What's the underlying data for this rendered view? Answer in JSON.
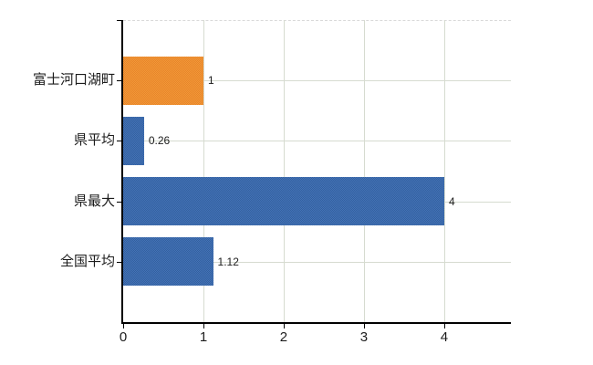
{
  "chart_data": {
    "type": "bar",
    "orientation": "horizontal",
    "categories": [
      "富士河口湖町",
      "県平均",
      "県最大",
      "全国平均"
    ],
    "values": [
      1,
      0.26,
      4,
      1.12
    ],
    "value_labels": [
      "1",
      "0.26",
      "4",
      "1.12"
    ],
    "bar_colors": [
      {
        "name": "orange",
        "c1": "#f19a38",
        "c2": "#e8832a",
        "avg": "#ed8f31"
      },
      {
        "name": "blue",
        "c1": "#4472b8",
        "c2": "#33619e",
        "avg": "#3c6aab"
      },
      {
        "name": "blue",
        "c1": "#4472b8",
        "c2": "#33619e",
        "avg": "#3c6aab"
      },
      {
        "name": "blue",
        "c1": "#4472b8",
        "c2": "#33619e",
        "avg": "#3c6aab"
      }
    ],
    "x_ticks": [
      "0",
      "1",
      "2",
      "3",
      "4"
    ],
    "x_tick_values": [
      0,
      1,
      2,
      3,
      4
    ],
    "xlim": [
      0,
      4.83
    ],
    "grid": true,
    "legend": false,
    "colors": {
      "axis": "#000000",
      "grid": "#d6dbd0",
      "border": "#d9d9d9",
      "text": "#1c1c1c",
      "background": "#ffffff"
    }
  }
}
